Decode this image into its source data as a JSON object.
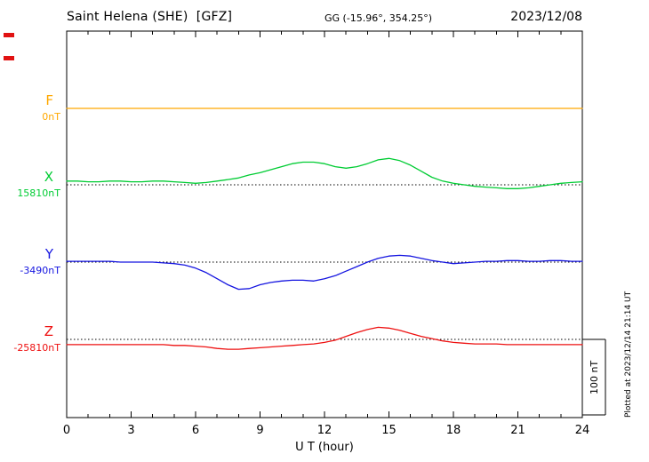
{
  "chart_data": {
    "type": "line",
    "title": "Saint Helena (SHE)  [GFZ]",
    "coords": "GG (-15.96°, 354.25°)",
    "date": "2023/12/08",
    "xlabel": "U T (hour)",
    "x_range_hours": [
      0,
      24
    ],
    "x_ticks": [
      0,
      3,
      6,
      9,
      12,
      15,
      18,
      21,
      24
    ],
    "x_step_hours": 0.5,
    "ylabel": "",
    "grid": "dotted horizontal baseline per component",
    "legend_position": "left margin, one colored label per component",
    "scale_bar": {
      "label": "100 nT",
      "nT": 100
    },
    "plotted_note": "Plotted at 2023/12/14 21:14 UT",
    "series": [
      {
        "name": "F",
        "color": "#ffa800",
        "baseline_label": "0nT",
        "unit": "nT deviation from baseline",
        "values": [
          0,
          0,
          0,
          0,
          0,
          0,
          0,
          0,
          0,
          0,
          0,
          0,
          0,
          0,
          0,
          0,
          0,
          0,
          0,
          0,
          0,
          0,
          0,
          0,
          0,
          0,
          0,
          0,
          0,
          0,
          0,
          0,
          0,
          0,
          0,
          0,
          0,
          0,
          0,
          0,
          0,
          0,
          0,
          0,
          0,
          0,
          0,
          0,
          0
        ]
      },
      {
        "name": "X",
        "color": "#00cc33",
        "baseline_label": "15810nT",
        "unit": "nT deviation from baseline",
        "values": [
          5,
          5,
          4,
          4,
          5,
          5,
          4,
          4,
          5,
          5,
          4,
          3,
          2,
          3,
          5,
          7,
          9,
          13,
          16,
          20,
          24,
          28,
          30,
          30,
          28,
          24,
          22,
          24,
          28,
          33,
          35,
          32,
          26,
          18,
          10,
          5,
          2,
          0,
          -2,
          -3,
          -4,
          -5,
          -5,
          -4,
          -2,
          0,
          2,
          3,
          4
        ]
      },
      {
        "name": "Y",
        "color": "#1515e0",
        "baseline_label": "-3490nT",
        "unit": "nT deviation from baseline",
        "values": [
          1,
          1,
          1,
          1,
          1,
          0,
          0,
          0,
          0,
          -1,
          -2,
          -4,
          -8,
          -14,
          -22,
          -30,
          -36,
          -35,
          -30,
          -27,
          -25,
          -24,
          -24,
          -25,
          -22,
          -18,
          -12,
          -6,
          0,
          5,
          8,
          9,
          8,
          5,
          2,
          0,
          -2,
          -1,
          0,
          1,
          1,
          2,
          2,
          1,
          1,
          2,
          2,
          1,
          1
        ]
      },
      {
        "name": "Z",
        "color": "#ee1111",
        "baseline_label": "-25810nT",
        "unit": "nT deviation from baseline",
        "values": [
          -7,
          -7,
          -7,
          -7,
          -7,
          -7,
          -7,
          -7,
          -7,
          -7,
          -8,
          -8,
          -9,
          -10,
          -12,
          -13,
          -13,
          -12,
          -11,
          -10,
          -9,
          -8,
          -7,
          -6,
          -4,
          -1,
          4,
          9,
          13,
          16,
          15,
          12,
          8,
          4,
          1,
          -2,
          -4,
          -5,
          -6,
          -6,
          -6,
          -7,
          -7,
          -7,
          -7,
          -7,
          -7,
          -7,
          -7
        ]
      }
    ]
  }
}
